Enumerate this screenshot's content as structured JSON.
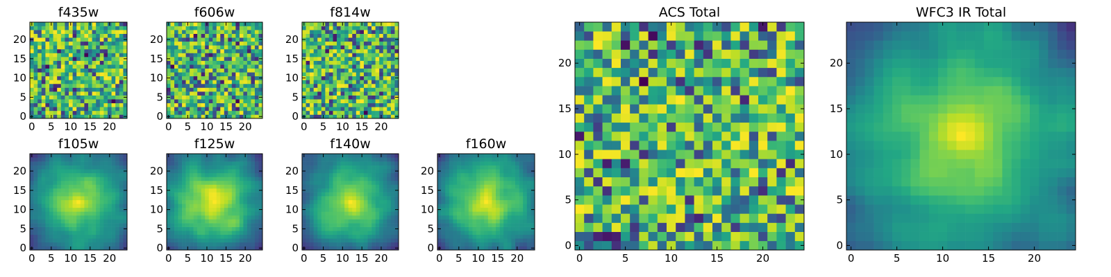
{
  "chart_data": [
    {
      "type": "heatmap",
      "title": "f435w",
      "grid_size": 25,
      "x_ticks": [
        0,
        5,
        10,
        15,
        20
      ],
      "y_ticks": [
        0,
        5,
        10,
        15,
        20
      ],
      "xlim": [
        -0.5,
        24.5
      ],
      "ylim": [
        -0.5,
        24.5
      ],
      "colormap": "viridis",
      "pattern": "noise",
      "seed": 11
    },
    {
      "type": "heatmap",
      "title": "f606w",
      "grid_size": 25,
      "x_ticks": [
        0,
        5,
        10,
        15,
        20
      ],
      "y_ticks": [
        0,
        5,
        10,
        15,
        20
      ],
      "xlim": [
        -0.5,
        24.5
      ],
      "ylim": [
        -0.5,
        24.5
      ],
      "colormap": "viridis",
      "pattern": "noise",
      "seed": 23
    },
    {
      "type": "heatmap",
      "title": "f814w",
      "grid_size": 25,
      "x_ticks": [
        0,
        5,
        10,
        15,
        20
      ],
      "y_ticks": [
        0,
        5,
        10,
        15,
        20
      ],
      "xlim": [
        -0.5,
        24.5
      ],
      "ylim": [
        -0.5,
        24.5
      ],
      "colormap": "viridis",
      "pattern": "noise",
      "seed": 37
    },
    {
      "type": "heatmap",
      "title": "f105w",
      "grid_size": 25,
      "x_ticks": [
        0,
        5,
        10,
        15,
        20
      ],
      "y_ticks": [
        0,
        5,
        10,
        15,
        20
      ],
      "xlim": [
        -0.5,
        24.5
      ],
      "ylim": [
        -0.5,
        24.5
      ],
      "colormap": "viridis",
      "pattern": "smooth",
      "seed": 41
    },
    {
      "type": "heatmap",
      "title": "f125w",
      "grid_size": 25,
      "x_ticks": [
        0,
        5,
        10,
        15,
        20
      ],
      "y_ticks": [
        0,
        5,
        10,
        15,
        20
      ],
      "xlim": [
        -0.5,
        24.5
      ],
      "ylim": [
        -0.5,
        24.5
      ],
      "colormap": "viridis",
      "pattern": "smooth",
      "seed": 53
    },
    {
      "type": "heatmap",
      "title": "f140w",
      "grid_size": 25,
      "x_ticks": [
        0,
        5,
        10,
        15,
        20
      ],
      "y_ticks": [
        0,
        5,
        10,
        15,
        20
      ],
      "xlim": [
        -0.5,
        24.5
      ],
      "ylim": [
        -0.5,
        24.5
      ],
      "colormap": "viridis",
      "pattern": "smooth",
      "seed": 67
    },
    {
      "type": "heatmap",
      "title": "f160w",
      "grid_size": 25,
      "x_ticks": [
        0,
        5,
        10,
        15,
        20
      ],
      "y_ticks": [
        0,
        5,
        10,
        15,
        20
      ],
      "xlim": [
        -0.5,
        24.5
      ],
      "ylim": [
        -0.5,
        24.5
      ],
      "colormap": "viridis",
      "pattern": "smooth",
      "seed": 79
    },
    {
      "type": "heatmap",
      "title": "ACS Total",
      "grid_size": 25,
      "x_ticks": [
        0,
        5,
        10,
        15,
        20
      ],
      "y_ticks": [
        0,
        5,
        10,
        15,
        20
      ],
      "xlim": [
        -0.5,
        24.5
      ],
      "ylim": [
        -0.5,
        24.5
      ],
      "colormap": "viridis",
      "pattern": "noise",
      "seed": 97
    },
    {
      "type": "heatmap",
      "title": "WFC3 IR Total",
      "grid_size": 25,
      "x_ticks": [
        0,
        5,
        10,
        15,
        20
      ],
      "y_ticks": [
        0,
        5,
        10,
        15,
        20
      ],
      "xlim": [
        -0.5,
        24.5
      ],
      "ylim": [
        -0.5,
        24.5
      ],
      "colormap": "viridis",
      "pattern": "smooth",
      "seed": 103
    }
  ]
}
